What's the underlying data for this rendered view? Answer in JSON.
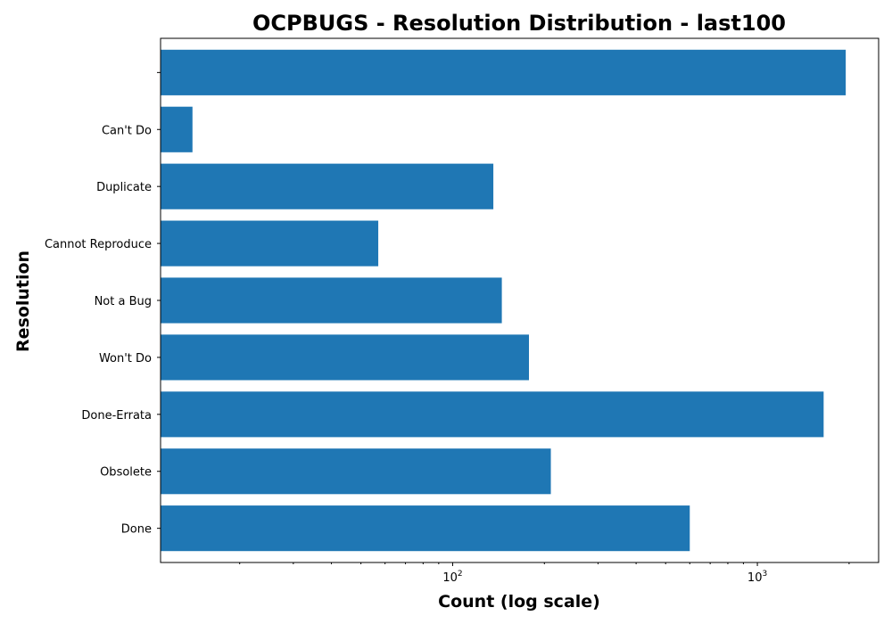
{
  "chart_data": {
    "type": "bar",
    "orientation": "horizontal",
    "title": "OCPBUGS - Resolution Distribution - last100",
    "xlabel": "Count (log scale)",
    "ylabel": "Resolution",
    "x_scale": "log",
    "xlim": [
      11,
      2500
    ],
    "x_ticks": [
      {
        "value": 100,
        "base": "10",
        "exp": "2"
      },
      {
        "value": 1000,
        "base": "10",
        "exp": "3"
      }
    ],
    "categories": [
      "Done",
      "Obsolete",
      "Done-Errata",
      "Won't Do",
      "Not a Bug",
      "Cannot Reproduce",
      "Duplicate",
      "Can't Do",
      ""
    ],
    "values": [
      600,
      210,
      1650,
      178,
      145,
      57,
      136,
      14,
      1950
    ],
    "bar_color": "#1f77b4",
    "grid": false,
    "legend": "none"
  }
}
